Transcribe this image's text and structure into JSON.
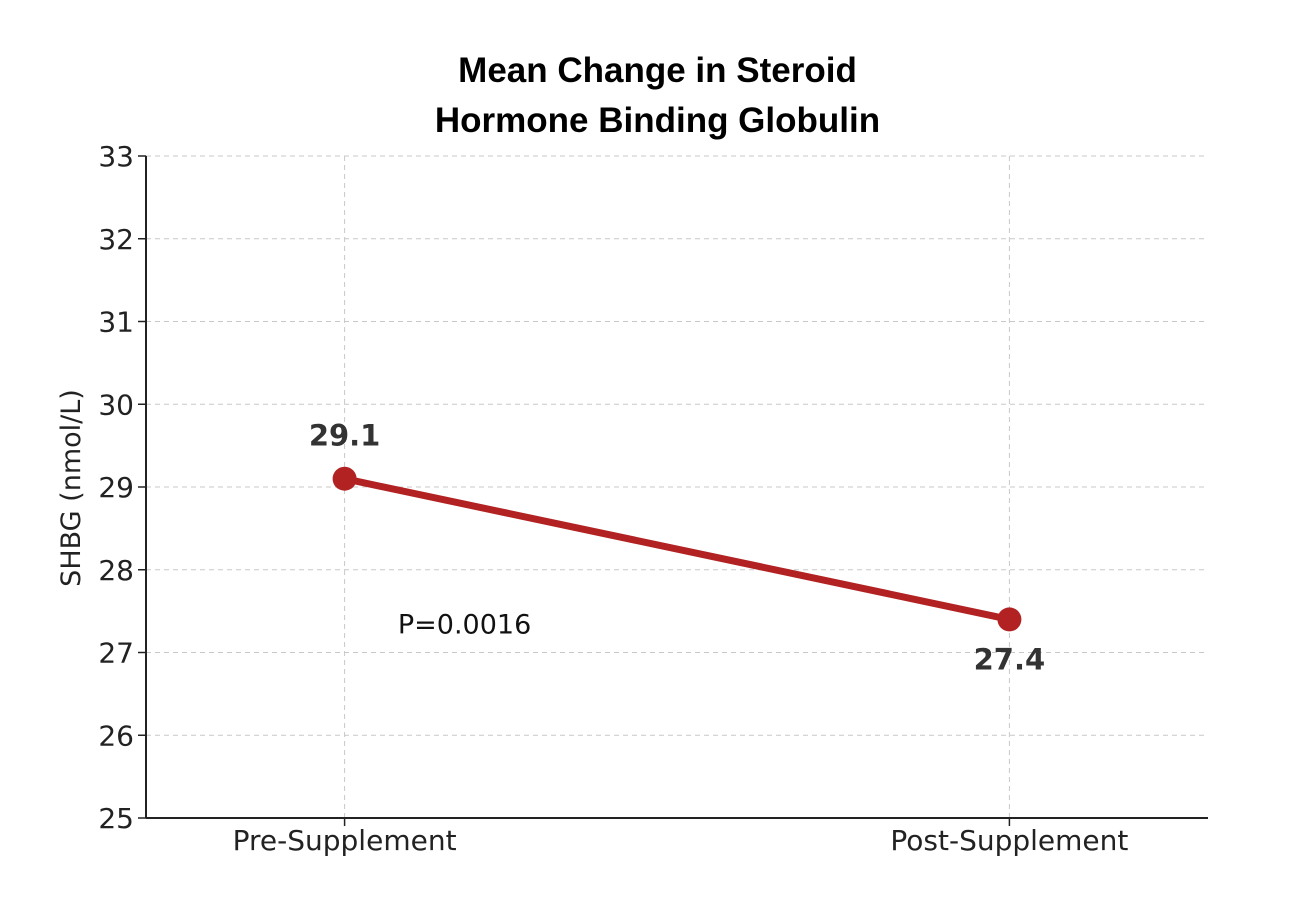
{
  "chart_data": {
    "type": "line",
    "title_lines": [
      "Mean Change in Steroid",
      "Hormone Binding Globulin"
    ],
    "xlabel": "",
    "ylabel": "SHBG (nmol/L)",
    "categories": [
      "Pre-Supplement",
      "Post-Supplement"
    ],
    "series": [
      {
        "values": [
          29.1,
          27.4
        ],
        "data_labels": [
          "29.1",
          "27.4"
        ],
        "color": "#b22222"
      }
    ],
    "ylim": [
      25,
      33
    ],
    "yticks": [
      25,
      26,
      27,
      28,
      29,
      30,
      31,
      32,
      33
    ],
    "annotation": {
      "text": "P=0.0016",
      "x": 0.3,
      "y": 27.35
    },
    "grid": true,
    "legend": "none"
  }
}
